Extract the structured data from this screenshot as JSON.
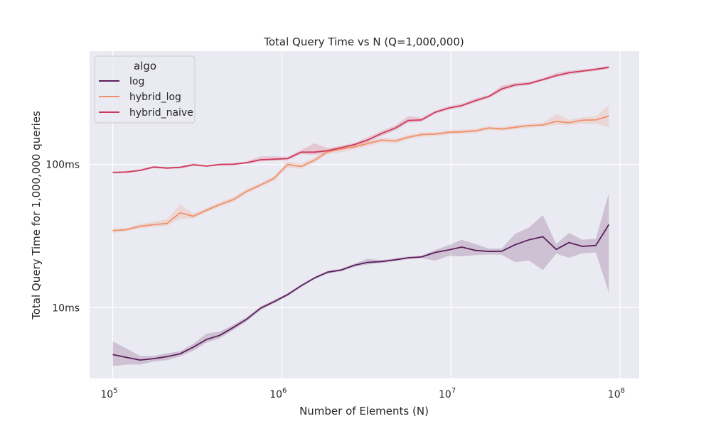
{
  "chart_data": {
    "type": "line",
    "title": "Total Query Time vs N (Q=1,000,000)",
    "xlabel": "Number of Elements (N)",
    "ylabel": "Total Query Time for 1,000,000 queries",
    "x_scale": "log",
    "y_scale": "log",
    "xlim": [
      73000,
      130000000
    ],
    "ylim_ms": [
      3.2,
      62
    ],
    "x_ticks": [
      {
        "value": 100000,
        "base": "10",
        "exp": "5"
      },
      {
        "value": 1000000,
        "base": "10",
        "exp": "6"
      },
      {
        "value": 10000000,
        "base": "10",
        "exp": "7"
      },
      {
        "value": 100000000,
        "base": "10",
        "exp": "8"
      }
    ],
    "y_ticks": [
      {
        "value": 10,
        "label": "10ms"
      },
      {
        "value": 100,
        "label": "100ms"
      }
    ],
    "grid": true,
    "legend": {
      "title": "algo",
      "placement": "top-left"
    },
    "series": [
      {
        "name": "log",
        "color": "#5c1f5c",
        "x": [
          100000,
          120000,
          145000,
          175000,
          210000,
          250000,
          300000,
          360000,
          430000,
          520000,
          620000,
          750000,
          900000,
          1080000,
          1300000,
          1560000,
          1870000,
          2240000,
          2700000,
          3200000,
          3900000,
          4700000,
          5600000,
          6700000,
          8100000,
          9700000,
          11600000,
          14000000,
          16800000,
          20000000,
          24000000,
          29000000,
          35000000,
          42000000,
          50000000,
          60000000,
          72000000,
          86000000
        ],
        "y": [
          4.7,
          4.5,
          4.3,
          4.4,
          4.55,
          4.75,
          5.3,
          6.0,
          6.4,
          7.3,
          8.3,
          9.9,
          11.0,
          12.3,
          14.2,
          16.1,
          17.7,
          18.3,
          19.8,
          20.7,
          21.0,
          21.6,
          22.3,
          22.6,
          24.3,
          25.3,
          26.5,
          25.1,
          24.7,
          24.8,
          27.5,
          29.8,
          31.3,
          25.5,
          28.5,
          26.8,
          27.2,
          38.0
        ],
        "lower": [
          3.9,
          4.0,
          4.0,
          4.2,
          4.3,
          4.55,
          5.0,
          5.7,
          6.1,
          7.0,
          8.0,
          9.6,
          10.7,
          12.0,
          13.9,
          15.8,
          17.3,
          17.9,
          19.3,
          20.0,
          20.5,
          21.1,
          21.8,
          22.1,
          21.3,
          23.0,
          22.8,
          23.3,
          23.5,
          23.4,
          20.8,
          21.3,
          18.3,
          23.8,
          22.3,
          24.0,
          24.3,
          12.7
        ],
        "upper": [
          5.8,
          5.2,
          4.6,
          4.6,
          4.8,
          4.95,
          5.6,
          6.6,
          6.8,
          7.6,
          8.6,
          10.2,
          11.3,
          12.6,
          14.5,
          16.4,
          18.1,
          18.7,
          20.3,
          21.9,
          21.5,
          22.1,
          22.8,
          23.1,
          25.3,
          27.3,
          29.8,
          27.8,
          25.8,
          25.9,
          32.8,
          36.3,
          44.3,
          27.8,
          33.3,
          29.8,
          30.3,
          63.0
        ]
      },
      {
        "name": "hybrid_log",
        "color": "#f0906a",
        "x": [
          100000,
          120000,
          145000,
          175000,
          210000,
          250000,
          300000,
          360000,
          430000,
          520000,
          620000,
          750000,
          900000,
          1080000,
          1300000,
          1560000,
          1870000,
          2240000,
          2700000,
          3200000,
          3900000,
          4700000,
          5600000,
          6700000,
          8100000,
          9700000,
          11600000,
          14000000,
          16800000,
          20000000,
          24000000,
          29000000,
          35000000,
          42000000,
          50000000,
          60000000,
          72000000,
          86000000
        ],
        "y": [
          34.5,
          35.0,
          37.0,
          38.0,
          38.8,
          46.0,
          43.5,
          48.0,
          52.5,
          57.0,
          65.0,
          72.0,
          80.0,
          100.0,
          97.0,
          107.0,
          123.0,
          128.0,
          133.0,
          140.0,
          148.0,
          146.0,
          155.0,
          162.0,
          163.0,
          168.0,
          169.0,
          172.0,
          180.0,
          177.0,
          182.0,
          187.0,
          189.0,
          200.0,
          196.0,
          204.0,
          205.0,
          218.0
        ],
        "lower": [
          33.3,
          34.2,
          35.7,
          36.6,
          37.3,
          41.8,
          41.9,
          46.4,
          50.7,
          54.9,
          62.9,
          69.6,
          76.8,
          95.0,
          93.2,
          103.0,
          118.0,
          122.0,
          128.0,
          134.0,
          142.0,
          140.0,
          149.0,
          156.0,
          158.0,
          162.0,
          164.0,
          166.0,
          174.0,
          172.0,
          176.0,
          181.0,
          183.0,
          189.0,
          188.0,
          193.0,
          193.0,
          182.0
        ],
        "upper": [
          35.7,
          36.0,
          38.5,
          39.8,
          41.6,
          52.5,
          45.5,
          50.0,
          54.5,
          59.5,
          67.5,
          74.5,
          83.0,
          105.0,
          101.0,
          112.0,
          128.0,
          134.0,
          138.0,
          146.0,
          154.0,
          152.0,
          161.0,
          168.0,
          168.0,
          175.0,
          175.0,
          178.0,
          186.0,
          183.0,
          189.0,
          193.0,
          196.0,
          226.0,
          205.0,
          214.0,
          218.0,
          260.0
        ]
      },
      {
        "name": "hybrid_naive",
        "color": "#cf3a5c",
        "x": [
          100000,
          120000,
          145000,
          175000,
          210000,
          250000,
          300000,
          360000,
          430000,
          520000,
          620000,
          750000,
          900000,
          1080000,
          1300000,
          1560000,
          1870000,
          2240000,
          2700000,
          3200000,
          3900000,
          4700000,
          5600000,
          6700000,
          8100000,
          9700000,
          11600000,
          14000000,
          16800000,
          20000000,
          24000000,
          29000000,
          35000000,
          42000000,
          50000000,
          60000000,
          72000000,
          86000000
        ],
        "y": [
          88.0,
          88.5,
          91.0,
          96.0,
          94.5,
          95.5,
          99.5,
          97.5,
          100.0,
          100.5,
          103.0,
          108.0,
          109.0,
          110.0,
          122.0,
          122.0,
          125.0,
          131.0,
          138.0,
          148.0,
          165.0,
          180.0,
          203.0,
          205.0,
          232.0,
          248.0,
          258.0,
          280.0,
          299.0,
          338.0,
          360.0,
          368.0,
          392.0,
          418.0,
          438.0,
          450.0,
          462.0,
          478.0
        ],
        "lower": [
          86.5,
          87.0,
          89.5,
          94.3,
          93.0,
          94.0,
          97.5,
          96.0,
          98.5,
          99.0,
          101.0,
          105.0,
          106.0,
          107.0,
          118.0,
          117.0,
          120.0,
          127.0,
          134.0,
          143.0,
          159.0,
          173.0,
          196.0,
          198.0,
          226.0,
          241.0,
          251.0,
          272.0,
          291.0,
          326.0,
          350.0,
          359.0,
          383.0,
          407.0,
          424.0,
          439.0,
          452.0,
          466.0
        ],
        "upper": [
          89.5,
          90.0,
          92.5,
          97.7,
          96.0,
          97.0,
          102.0,
          99.0,
          101.5,
          102.0,
          105.0,
          114.0,
          114.0,
          113.0,
          126.0,
          141.0,
          130.0,
          135.0,
          142.0,
          154.0,
          172.0,
          188.0,
          218.0,
          212.0,
          238.0,
          256.0,
          266.0,
          290.0,
          306.0,
          356.0,
          372.0,
          378.0,
          402.0,
          437.0,
          452.0,
          462.0,
          474.0,
          490.0
        ]
      }
    ]
  }
}
